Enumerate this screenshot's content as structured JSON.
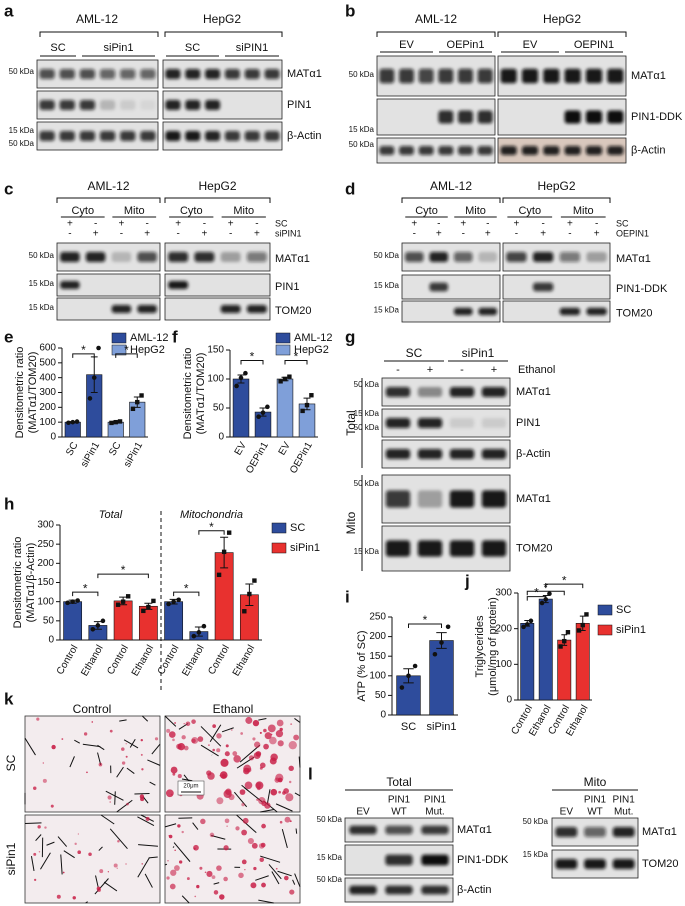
{
  "panel_labels": [
    "a",
    "b",
    "c",
    "d",
    "e",
    "f",
    "g",
    "h",
    "i",
    "j",
    "k",
    "l"
  ],
  "blot_a": {
    "groups": [
      "AML-12",
      "HepG2"
    ],
    "lanes": [
      "SC",
      "siPin1",
      "SC",
      "siPIN1"
    ],
    "markers": [
      "50 kDa",
      "15 kDa",
      "50 kDa"
    ],
    "bands": [
      "MATα1",
      "PIN1",
      "β-Actin"
    ]
  },
  "blot_b": {
    "groups": [
      "AML-12",
      "HepG2"
    ],
    "lanes": [
      "EV",
      "OEPin1",
      "EV",
      "OEPIN1"
    ],
    "markers": [
      "50 kDa",
      "15 kDa",
      "50 kDa"
    ],
    "bands": [
      "MATα1",
      "PIN1-DDK",
      "β-Actin"
    ]
  },
  "blot_c": {
    "groups": [
      "AML-12",
      "HepG2"
    ],
    "fractions": [
      "Cyto",
      "Mito",
      "Cyto",
      "Mito"
    ],
    "treatments": [
      "SC",
      "siPIN1"
    ],
    "signs": [
      [
        "+",
        "-",
        "+",
        "-",
        "+",
        "-",
        "+",
        "-"
      ],
      [
        "-",
        "+",
        "-",
        "+",
        "-",
        "+",
        "-",
        "+"
      ]
    ],
    "markers": [
      "50 kDa",
      "15 kDa",
      "15 kDa"
    ],
    "bands": [
      "MATα1",
      "PIN1",
      "TOM20"
    ]
  },
  "blot_d": {
    "groups": [
      "AML-12",
      "HepG2"
    ],
    "fractions": [
      "Cyto",
      "Mito",
      "Cyto",
      "Mito"
    ],
    "treatments": [
      "SC",
      "OEPIN1"
    ],
    "signs": [
      [
        "+",
        "-",
        "+",
        "-",
        "+",
        "-",
        "+",
        "-"
      ],
      [
        "-",
        "+",
        "-",
        "+",
        "-",
        "+",
        "-",
        "+"
      ]
    ],
    "markers": [
      "50 kDa",
      "15 kDa",
      "15 kDa"
    ],
    "bands": [
      "MATα1",
      "PIN1-DDK",
      "TOM20"
    ]
  },
  "blot_g": {
    "lanes": [
      "SC",
      "siPin1"
    ],
    "treatment": "Ethanol",
    "signs": [
      "-",
      "+",
      "-",
      "+"
    ],
    "sections": [
      "Total",
      "Mito"
    ],
    "markers": [
      "50 kDa",
      "15 kDa",
      "50 kDa",
      "50 kDa",
      "15 kDa"
    ],
    "bands": [
      "MATα1",
      "PIN1",
      "β-Actin",
      "MATα1",
      "TOM20"
    ]
  },
  "histology_k": {
    "columns": [
      "Control",
      "Ethanol"
    ],
    "rows": [
      "SC",
      "siPin1"
    ],
    "scale_bar": "20μm"
  },
  "blot_l": {
    "total": {
      "title": "Total",
      "lanes_top": [
        "PIN1",
        "PIN1"
      ],
      "lanes": [
        "EV",
        "WT",
        "Mut."
      ],
      "markers": [
        "50 kDa",
        "15 kDa",
        "50 kDa"
      ],
      "bands": [
        "MATα1",
        "PIN1-DDK",
        "β-Actin"
      ]
    },
    "mito": {
      "title": "Mito",
      "lanes_top": [
        "PIN1",
        "PIN1"
      ],
      "lanes": [
        "EV",
        "WT",
        "Mut."
      ],
      "markers": [
        "50 kDa",
        "15 kDa"
      ],
      "bands": [
        "MATα1",
        "TOM20"
      ]
    }
  },
  "chart_data": [
    {
      "type": "bar",
      "ylabel": [
        "Densitometric ratio",
        "(MATα1/TOM20)"
      ],
      "categories": [
        "SC",
        "siPin1",
        "SC",
        "siPin1"
      ],
      "series": [
        {
          "name": "AML-12",
          "color": "#2e4c9c",
          "values": [
            100,
            420,
            null,
            null
          ],
          "errors": [
            4,
            120,
            null,
            null
          ],
          "points": [
            [
              96,
              100,
              104
            ],
            [
              260,
              400,
              600
            ],
            null,
            null
          ]
        },
        {
          "name": "HepG2",
          "color": "#7f9fd9",
          "values": [
            null,
            null,
            100,
            235
          ],
          "errors": [
            null,
            null,
            5,
            35
          ],
          "points": [
            null,
            null,
            [
              95,
              100,
              105
            ],
            [
              190,
              235,
              280
            ]
          ]
        }
      ],
      "ylim": [
        0,
        600
      ],
      "yticks": [
        0,
        100,
        200,
        300,
        400,
        500,
        600
      ],
      "significance": [
        "*",
        "*"
      ],
      "legend": true
    },
    {
      "type": "bar",
      "ylabel": [
        "Densitometric ratio",
        "(MATα1/TOM20)"
      ],
      "categories": [
        "EV",
        "OEPin1",
        "EV",
        "OEPin1"
      ],
      "series": [
        {
          "name": "AML-12",
          "color": "#2e4c9c",
          "values": [
            100,
            43,
            null,
            null
          ],
          "errors": [
            7,
            7,
            null,
            null
          ],
          "points": [
            [
              88,
              102,
              110
            ],
            [
              35,
              42,
              52
            ],
            null,
            null
          ]
        },
        {
          "name": "HepG2",
          "color": "#7f9fd9",
          "values": [
            null,
            null,
            100,
            57
          ],
          "errors": [
            null,
            null,
            3,
            10
          ],
          "points": [
            null,
            null,
            [
              96,
              100,
              104
            ],
            [
              45,
              55,
              72
            ]
          ]
        }
      ],
      "ylim": [
        0,
        150
      ],
      "yticks": [
        0,
        50,
        100,
        150
      ],
      "significance": [
        "*",
        "*"
      ],
      "legend": true
    },
    {
      "type": "bar",
      "ylabel": [
        "Densitometric ratio",
        "(MATα1/β-Actin)"
      ],
      "annotations": [
        "Total",
        "Mitochondria"
      ],
      "categories": [
        "Control",
        "Ethanol",
        "Control",
        "Ethanol",
        "Control",
        "Ethanol",
        "Control",
        "Ethanol"
      ],
      "series": [
        {
          "name": "SC",
          "color": "#2e4c9c",
          "values": [
            100,
            38,
            null,
            null,
            100,
            22,
            null,
            null
          ],
          "errors": [
            4,
            10,
            null,
            null,
            6,
            12,
            null,
            null
          ],
          "points": [
            [
              97,
              100,
              103
            ],
            [
              28,
              38,
              50
            ],
            null,
            null,
            [
              94,
              100,
              105
            ],
            [
              10,
              20,
              36
            ],
            null,
            null
          ]
        },
        {
          "name": "siPin1",
          "color": "#e8312f",
          "values": [
            null,
            null,
            102,
            88,
            null,
            null,
            228,
            118
          ],
          "errors": [
            null,
            null,
            10,
            8,
            null,
            null,
            40,
            28
          ],
          "points": [
            null,
            null,
            [
              92,
              100,
              114
            ],
            [
              76,
              86,
              102
            ],
            null,
            null,
            [
              170,
              230,
              280
            ],
            [
              75,
              120,
              155
            ]
          ]
        }
      ],
      "ylim": [
        0,
        300
      ],
      "yticks": [
        0,
        50,
        100,
        150,
        200,
        250,
        300
      ],
      "significance": [
        "*",
        "*",
        "*",
        "*"
      ],
      "legend": true
    },
    {
      "type": "bar",
      "ylabel": [
        "ATP (% of SC)"
      ],
      "categories": [
        "SC",
        "siPin1"
      ],
      "color": "#2e4c9c",
      "values": [
        100,
        190
      ],
      "errors": [
        18,
        20
      ],
      "points": [
        [
          70,
          100,
          125
        ],
        [
          155,
          185,
          225
        ]
      ],
      "ylim": [
        0,
        250
      ],
      "yticks": [
        0,
        50,
        100,
        150,
        200,
        250
      ],
      "significance": [
        "*"
      ],
      "legend": false
    },
    {
      "type": "bar",
      "ylabel": [
        "Triglycerides",
        "(μmol/mg of protein)"
      ],
      "categories": [
        "Control",
        "Ethanol",
        "Control",
        "Ethanol"
      ],
      "series": [
        {
          "name": "SC",
          "color": "#2e4c9c",
          "values": [
            215,
            283,
            null,
            null
          ],
          "errors": [
            8,
            10,
            null,
            null
          ],
          "points": [
            [
              205,
              212,
              222
            ],
            [
              272,
              282,
              298
            ],
            null,
            null
          ]
        },
        {
          "name": "siPin1",
          "color": "#e8312f",
          "values": [
            null,
            null,
            168,
            215
          ],
          "errors": [
            null,
            null,
            15,
            20
          ],
          "points": [
            null,
            null,
            [
              150,
              165,
              190
            ],
            [
              195,
              210,
              240
            ]
          ]
        }
      ],
      "ylim": [
        0,
        300
      ],
      "yticks": [
        0,
        100,
        200,
        300
      ],
      "significance": [
        "*",
        "*",
        "*"
      ],
      "legend": true
    }
  ]
}
